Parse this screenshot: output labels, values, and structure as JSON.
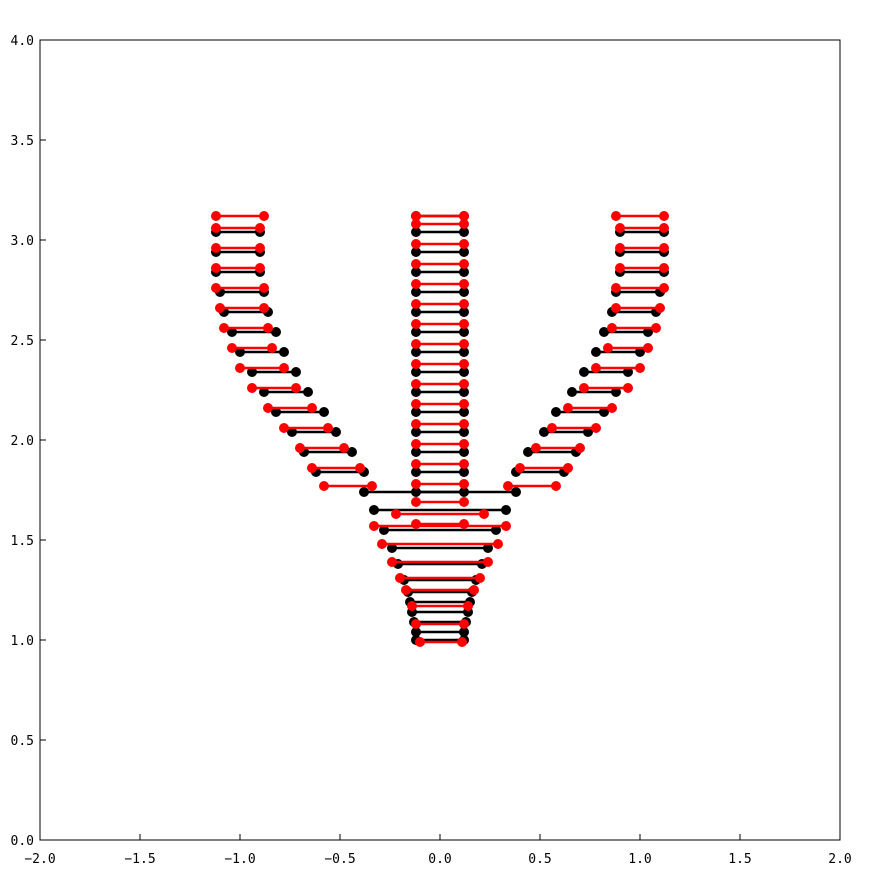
{
  "chart_data": {
    "type": "scatter",
    "title": "",
    "xlabel": "",
    "ylabel": "",
    "xlim": [
      -2.0,
      2.0
    ],
    "ylim": [
      0.0,
      4.0
    ],
    "grid": false,
    "legend": "none",
    "x_ticks": [
      "−2.0",
      "−1.5",
      "−1.0",
      "−0.5",
      "0.0",
      "0.5",
      "1.0",
      "1.5",
      "2.0"
    ],
    "y_ticks": [
      "0.0",
      "0.5",
      "1.0",
      "1.5",
      "2.0",
      "2.5",
      "3.0",
      "3.5",
      "4.0"
    ],
    "colors": {
      "series_a": "#000000",
      "series_b": "#ff0000",
      "axes": "#000000"
    },
    "series": [
      {
        "color": "#000000",
        "segments": [
          [
            -0.12,
            1.0,
            0.12,
            1.0
          ],
          [
            -0.12,
            1.04,
            0.12,
            1.04
          ],
          [
            -0.13,
            1.09,
            0.13,
            1.09
          ],
          [
            -0.14,
            1.14,
            0.14,
            1.14
          ],
          [
            -0.15,
            1.19,
            0.15,
            1.19
          ],
          [
            -0.16,
            1.24,
            0.16,
            1.24
          ],
          [
            -0.18,
            1.3,
            0.18,
            1.3
          ],
          [
            -0.21,
            1.38,
            0.21,
            1.38
          ],
          [
            -0.24,
            1.46,
            0.24,
            1.46
          ],
          [
            -0.28,
            1.55,
            0.28,
            1.55
          ],
          [
            -0.33,
            1.65,
            0.33,
            1.65
          ],
          [
            -0.38,
            1.74,
            0.38,
            1.74
          ],
          [
            -0.12,
            1.74,
            0.12,
            1.74
          ],
          [
            -0.12,
            1.84,
            0.12,
            1.84
          ],
          [
            -0.12,
            1.94,
            0.12,
            1.94
          ],
          [
            -0.12,
            2.04,
            0.12,
            2.04
          ],
          [
            -0.12,
            2.14,
            0.12,
            2.14
          ],
          [
            -0.12,
            2.24,
            0.12,
            2.24
          ],
          [
            -0.12,
            2.34,
            0.12,
            2.34
          ],
          [
            -0.12,
            2.44,
            0.12,
            2.44
          ],
          [
            -0.12,
            2.54,
            0.12,
            2.54
          ],
          [
            -0.12,
            2.64,
            0.12,
            2.64
          ],
          [
            -0.12,
            2.74,
            0.12,
            2.74
          ],
          [
            -0.12,
            2.84,
            0.12,
            2.84
          ],
          [
            -0.12,
            2.94,
            0.12,
            2.94
          ],
          [
            -0.12,
            3.04,
            0.12,
            3.04
          ],
          [
            -0.12,
            3.12,
            0.12,
            3.12
          ],
          [
            -0.62,
            1.84,
            -0.38,
            1.84
          ],
          [
            0.38,
            1.84,
            0.62,
            1.84
          ],
          [
            -0.68,
            1.94,
            -0.44,
            1.94
          ],
          [
            0.44,
            1.94,
            0.68,
            1.94
          ],
          [
            -0.74,
            2.04,
            -0.52,
            2.04
          ],
          [
            0.52,
            2.04,
            0.74,
            2.04
          ],
          [
            -0.82,
            2.14,
            -0.58,
            2.14
          ],
          [
            0.58,
            2.14,
            0.82,
            2.14
          ],
          [
            -0.88,
            2.24,
            -0.66,
            2.24
          ],
          [
            0.66,
            2.24,
            0.88,
            2.24
          ],
          [
            -0.94,
            2.34,
            -0.72,
            2.34
          ],
          [
            0.72,
            2.34,
            0.94,
            2.34
          ],
          [
            -1.0,
            2.44,
            -0.78,
            2.44
          ],
          [
            0.78,
            2.44,
            1.0,
            2.44
          ],
          [
            -1.04,
            2.54,
            -0.82,
            2.54
          ],
          [
            0.82,
            2.54,
            1.04,
            2.54
          ],
          [
            -1.08,
            2.64,
            -0.86,
            2.64
          ],
          [
            0.86,
            2.64,
            1.08,
            2.64
          ],
          [
            -1.1,
            2.74,
            -0.88,
            2.74
          ],
          [
            0.88,
            2.74,
            1.1,
            2.74
          ],
          [
            -1.12,
            2.84,
            -0.9,
            2.84
          ],
          [
            0.9,
            2.84,
            1.12,
            2.84
          ],
          [
            -1.12,
            2.94,
            -0.9,
            2.94
          ],
          [
            0.9,
            2.94,
            1.12,
            2.94
          ],
          [
            -1.12,
            3.04,
            -0.9,
            3.04
          ],
          [
            0.9,
            3.04,
            1.12,
            3.04
          ]
        ]
      },
      {
        "color": "#ff0000",
        "segments": [
          [
            -0.1,
            0.99,
            0.11,
            0.99
          ],
          [
            -0.12,
            1.08,
            0.12,
            1.08
          ],
          [
            -0.14,
            1.17,
            0.14,
            1.17
          ],
          [
            -0.17,
            1.25,
            0.17,
            1.25
          ],
          [
            -0.2,
            1.31,
            0.2,
            1.31
          ],
          [
            -0.24,
            1.39,
            0.24,
            1.39
          ],
          [
            -0.29,
            1.48,
            0.29,
            1.48
          ],
          [
            -0.33,
            1.57,
            0.33,
            1.57
          ],
          [
            -0.22,
            1.63,
            0.22,
            1.63
          ],
          [
            -0.12,
            1.58,
            0.12,
            1.58
          ],
          [
            -0.12,
            1.69,
            0.12,
            1.69
          ],
          [
            -0.12,
            1.78,
            0.12,
            1.78
          ],
          [
            -0.12,
            1.88,
            0.12,
            1.88
          ],
          [
            -0.12,
            1.98,
            0.12,
            1.98
          ],
          [
            -0.12,
            2.08,
            0.12,
            2.08
          ],
          [
            -0.12,
            2.18,
            0.12,
            2.18
          ],
          [
            -0.12,
            2.28,
            0.12,
            2.28
          ],
          [
            -0.12,
            2.38,
            0.12,
            2.38
          ],
          [
            -0.12,
            2.48,
            0.12,
            2.48
          ],
          [
            -0.12,
            2.58,
            0.12,
            2.58
          ],
          [
            -0.12,
            2.68,
            0.12,
            2.68
          ],
          [
            -0.12,
            2.78,
            0.12,
            2.78
          ],
          [
            -0.12,
            2.88,
            0.12,
            2.88
          ],
          [
            -0.12,
            2.98,
            0.12,
            2.98
          ],
          [
            -0.12,
            3.08,
            0.12,
            3.08
          ],
          [
            -0.12,
            3.12,
            0.12,
            3.12
          ],
          [
            -0.58,
            1.77,
            -0.34,
            1.77
          ],
          [
            0.34,
            1.77,
            0.58,
            1.77
          ],
          [
            -0.64,
            1.86,
            -0.4,
            1.86
          ],
          [
            0.4,
            1.86,
            0.64,
            1.86
          ],
          [
            -0.7,
            1.96,
            -0.48,
            1.96
          ],
          [
            0.48,
            1.96,
            0.7,
            1.96
          ],
          [
            -0.78,
            2.06,
            -0.56,
            2.06
          ],
          [
            0.56,
            2.06,
            0.78,
            2.06
          ],
          [
            -0.86,
            2.16,
            -0.64,
            2.16
          ],
          [
            0.64,
            2.16,
            0.86,
            2.16
          ],
          [
            -0.94,
            2.26,
            -0.72,
            2.26
          ],
          [
            0.72,
            2.26,
            0.94,
            2.26
          ],
          [
            -1.0,
            2.36,
            -0.78,
            2.36
          ],
          [
            0.78,
            2.36,
            1.0,
            2.36
          ],
          [
            -1.04,
            2.46,
            -0.84,
            2.46
          ],
          [
            0.84,
            2.46,
            1.04,
            2.46
          ],
          [
            -1.08,
            2.56,
            -0.86,
            2.56
          ],
          [
            0.86,
            2.56,
            1.08,
            2.56
          ],
          [
            -1.1,
            2.66,
            -0.88,
            2.66
          ],
          [
            0.88,
            2.66,
            1.1,
            2.66
          ],
          [
            -1.12,
            2.76,
            -0.88,
            2.76
          ],
          [
            0.88,
            2.76,
            1.12,
            2.76
          ],
          [
            -1.12,
            2.86,
            -0.9,
            2.86
          ],
          [
            0.9,
            2.86,
            1.12,
            2.86
          ],
          [
            -1.12,
            2.96,
            -0.9,
            2.96
          ],
          [
            0.9,
            2.96,
            1.12,
            2.96
          ],
          [
            -1.12,
            3.06,
            -0.9,
            3.06
          ],
          [
            0.9,
            3.06,
            1.12,
            3.06
          ],
          [
            -1.12,
            3.12,
            -0.88,
            3.12
          ],
          [
            0.88,
            3.12,
            1.12,
            3.12
          ]
        ]
      }
    ]
  }
}
